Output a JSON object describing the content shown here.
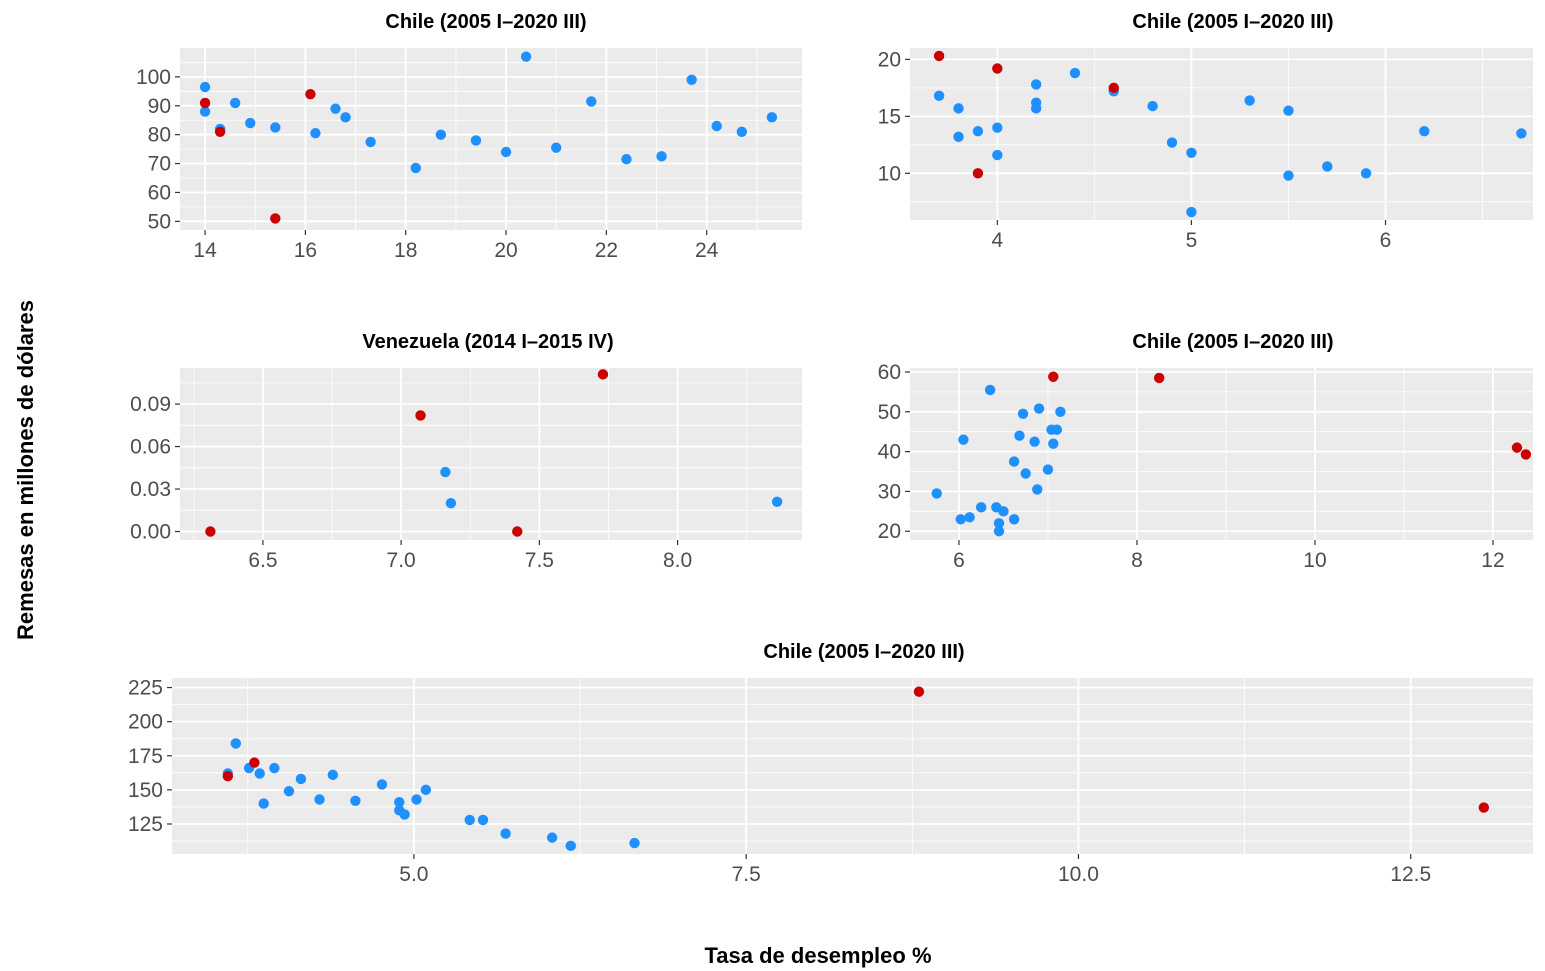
{
  "figure": {
    "xlabel": "Tasa de desempleo %",
    "ylabel": "Remesas en millones de dólares",
    "colors": {
      "normal": "#1e90ff",
      "highlight": "#cc0000",
      "panel_bg": "#ebebeb",
      "grid": "#ffffff",
      "tick_text": "#4d4d4d"
    }
  },
  "chart_data": [
    {
      "type": "scatter",
      "title": "Chile (2005 I–2020 III)",
      "xlim": [
        13.5,
        25.9
      ],
      "ylim": [
        47,
        110
      ],
      "x_ticks": [
        14,
        16,
        18,
        20,
        22,
        24
      ],
      "x_tick_labels": [
        "14",
        "16",
        "18",
        "20",
        "22",
        "24"
      ],
      "y_ticks": [
        50,
        60,
        70,
        80,
        90,
        100
      ],
      "y_tick_labels": [
        "50",
        "60",
        "70",
        "80",
        "90",
        "100"
      ],
      "points": [
        {
          "x": 14.0,
          "y": 96.5,
          "highlight": false
        },
        {
          "x": 14.0,
          "y": 88.0,
          "highlight": false
        },
        {
          "x": 14.0,
          "y": 91.0,
          "highlight": true
        },
        {
          "x": 14.3,
          "y": 82.0,
          "highlight": false
        },
        {
          "x": 14.3,
          "y": 81.0,
          "highlight": true
        },
        {
          "x": 14.6,
          "y": 91.0,
          "highlight": false
        },
        {
          "x": 14.9,
          "y": 84.0,
          "highlight": false
        },
        {
          "x": 15.4,
          "y": 82.5,
          "highlight": false
        },
        {
          "x": 15.4,
          "y": 51.0,
          "highlight": true
        },
        {
          "x": 16.1,
          "y": 94.0,
          "highlight": true
        },
        {
          "x": 16.2,
          "y": 80.5,
          "highlight": false
        },
        {
          "x": 16.6,
          "y": 89.0,
          "highlight": false
        },
        {
          "x": 16.8,
          "y": 86.0,
          "highlight": false
        },
        {
          "x": 17.3,
          "y": 77.5,
          "highlight": false
        },
        {
          "x": 18.2,
          "y": 68.5,
          "highlight": false
        },
        {
          "x": 18.7,
          "y": 80.0,
          "highlight": false
        },
        {
          "x": 19.4,
          "y": 78.0,
          "highlight": false
        },
        {
          "x": 20.0,
          "y": 74.0,
          "highlight": false
        },
        {
          "x": 20.4,
          "y": 107.0,
          "highlight": false
        },
        {
          "x": 21.0,
          "y": 75.5,
          "highlight": false
        },
        {
          "x": 21.7,
          "y": 91.5,
          "highlight": false
        },
        {
          "x": 22.4,
          "y": 71.5,
          "highlight": false
        },
        {
          "x": 23.1,
          "y": 72.5,
          "highlight": false
        },
        {
          "x": 23.7,
          "y": 99.0,
          "highlight": false
        },
        {
          "x": 24.2,
          "y": 83.0,
          "highlight": false
        },
        {
          "x": 24.7,
          "y": 81.0,
          "highlight": false
        },
        {
          "x": 25.3,
          "y": 86.0,
          "highlight": false
        }
      ]
    },
    {
      "type": "scatter",
      "title": "Chile (2005 I–2020 III)",
      "xlim": [
        3.55,
        6.76
      ],
      "ylim": [
        5.9,
        21.0
      ],
      "x_ticks": [
        4,
        5,
        6
      ],
      "x_tick_labels": [
        "4",
        "5",
        "6"
      ],
      "y_ticks": [
        10,
        15,
        20
      ],
      "y_tick_labels": [
        "10",
        "15",
        "20"
      ],
      "points": [
        {
          "x": 3.7,
          "y": 20.3,
          "highlight": true
        },
        {
          "x": 3.7,
          "y": 16.8,
          "highlight": false
        },
        {
          "x": 3.8,
          "y": 15.7,
          "highlight": false
        },
        {
          "x": 3.8,
          "y": 13.2,
          "highlight": false
        },
        {
          "x": 3.9,
          "y": 13.7,
          "highlight": false
        },
        {
          "x": 3.9,
          "y": 10.0,
          "highlight": true
        },
        {
          "x": 4.0,
          "y": 19.2,
          "highlight": true
        },
        {
          "x": 4.0,
          "y": 14.0,
          "highlight": false
        },
        {
          "x": 4.0,
          "y": 11.6,
          "highlight": false
        },
        {
          "x": 4.2,
          "y": 17.8,
          "highlight": false
        },
        {
          "x": 4.2,
          "y": 16.2,
          "highlight": false
        },
        {
          "x": 4.2,
          "y": 15.7,
          "highlight": false
        },
        {
          "x": 4.4,
          "y": 18.8,
          "highlight": false
        },
        {
          "x": 4.6,
          "y": 17.2,
          "highlight": false
        },
        {
          "x": 4.6,
          "y": 17.5,
          "highlight": true
        },
        {
          "x": 4.8,
          "y": 15.9,
          "highlight": false
        },
        {
          "x": 4.9,
          "y": 12.7,
          "highlight": false
        },
        {
          "x": 5.0,
          "y": 11.8,
          "highlight": false
        },
        {
          "x": 5.0,
          "y": 6.6,
          "highlight": false
        },
        {
          "x": 5.3,
          "y": 16.4,
          "highlight": false
        },
        {
          "x": 5.5,
          "y": 15.5,
          "highlight": false
        },
        {
          "x": 5.5,
          "y": 9.8,
          "highlight": false
        },
        {
          "x": 5.7,
          "y": 10.6,
          "highlight": false
        },
        {
          "x": 5.9,
          "y": 10.0,
          "highlight": false
        },
        {
          "x": 6.2,
          "y": 13.7,
          "highlight": false
        },
        {
          "x": 6.7,
          "y": 13.5,
          "highlight": false
        }
      ]
    },
    {
      "type": "scatter",
      "title": "Venezuela (2014 I–2015 IV)",
      "xlim": [
        6.2,
        8.45
      ],
      "ylim": [
        -0.006,
        0.1155
      ],
      "x_ticks": [
        6.5,
        7.0,
        7.5,
        8.0
      ],
      "x_tick_labels": [
        "6.5",
        "7.0",
        "7.5",
        "8.0"
      ],
      "y_ticks": [
        0.0,
        0.03,
        0.06,
        0.09
      ],
      "y_tick_labels": [
        "0.00",
        "0.03",
        "0.06",
        "0.09"
      ],
      "points": [
        {
          "x": 6.31,
          "y": 0.0,
          "highlight": true
        },
        {
          "x": 7.07,
          "y": 0.082,
          "highlight": true
        },
        {
          "x": 7.16,
          "y": 0.042,
          "highlight": false
        },
        {
          "x": 7.18,
          "y": 0.02,
          "highlight": false
        },
        {
          "x": 7.42,
          "y": 0.0,
          "highlight": true
        },
        {
          "x": 7.73,
          "y": 0.111,
          "highlight": true
        },
        {
          "x": 8.36,
          "y": 0.021,
          "highlight": false
        }
      ]
    },
    {
      "type": "scatter",
      "title": "Chile (2005 I–2020 III)",
      "xlim": [
        5.45,
        12.45
      ],
      "ylim": [
        17.8,
        61.0
      ],
      "x_ticks": [
        6,
        8,
        10,
        12
      ],
      "x_tick_labels": [
        "6",
        "8",
        "10",
        "12"
      ],
      "y_ticks": [
        20,
        30,
        40,
        50,
        60
      ],
      "y_tick_labels": [
        "20",
        "30",
        "40",
        "50",
        "60"
      ],
      "points": [
        {
          "x": 5.75,
          "y": 29.5,
          "highlight": false
        },
        {
          "x": 6.02,
          "y": 23.0,
          "highlight": false
        },
        {
          "x": 6.05,
          "y": 43.0,
          "highlight": false
        },
        {
          "x": 6.12,
          "y": 23.5,
          "highlight": false
        },
        {
          "x": 6.25,
          "y": 26.0,
          "highlight": false
        },
        {
          "x": 6.35,
          "y": 55.5,
          "highlight": false
        },
        {
          "x": 6.42,
          "y": 26.0,
          "highlight": false
        },
        {
          "x": 6.45,
          "y": 22.0,
          "highlight": false
        },
        {
          "x": 6.45,
          "y": 20.0,
          "highlight": false
        },
        {
          "x": 6.5,
          "y": 25.0,
          "highlight": false
        },
        {
          "x": 6.62,
          "y": 37.5,
          "highlight": false
        },
        {
          "x": 6.62,
          "y": 23.0,
          "highlight": false
        },
        {
          "x": 6.68,
          "y": 44.0,
          "highlight": false
        },
        {
          "x": 6.72,
          "y": 49.5,
          "highlight": false
        },
        {
          "x": 6.75,
          "y": 34.5,
          "highlight": false
        },
        {
          "x": 6.85,
          "y": 42.5,
          "highlight": false
        },
        {
          "x": 6.88,
          "y": 30.5,
          "highlight": false
        },
        {
          "x": 6.9,
          "y": 50.8,
          "highlight": false
        },
        {
          "x": 7.0,
          "y": 35.5,
          "highlight": false
        },
        {
          "x": 7.04,
          "y": 45.5,
          "highlight": false
        },
        {
          "x": 7.06,
          "y": 42.0,
          "highlight": false
        },
        {
          "x": 7.06,
          "y": 58.8,
          "highlight": true
        },
        {
          "x": 7.1,
          "y": 45.5,
          "highlight": false
        },
        {
          "x": 7.14,
          "y": 50.0,
          "highlight": false
        },
        {
          "x": 8.25,
          "y": 58.5,
          "highlight": true
        },
        {
          "x": 12.27,
          "y": 41.0,
          "highlight": true
        },
        {
          "x": 12.37,
          "y": 39.3,
          "highlight": true
        }
      ]
    },
    {
      "type": "scatter",
      "title": "Chile (2005 I–2020 III)",
      "xlim": [
        3.18,
        13.42
      ],
      "ylim": [
        103,
        232
      ],
      "x_ticks": [
        5.0,
        7.5,
        10.0,
        12.5
      ],
      "x_tick_labels": [
        "5.0",
        "7.5",
        "10.0",
        "12.5"
      ],
      "y_ticks": [
        125,
        150,
        175,
        200,
        225
      ],
      "y_tick_labels": [
        "125",
        "150",
        "175",
        "200",
        "225"
      ],
      "points": [
        {
          "x": 3.6,
          "y": 162,
          "highlight": false
        },
        {
          "x": 3.6,
          "y": 160,
          "highlight": true
        },
        {
          "x": 3.66,
          "y": 184,
          "highlight": false
        },
        {
          "x": 3.76,
          "y": 166,
          "highlight": false
        },
        {
          "x": 3.8,
          "y": 170,
          "highlight": true
        },
        {
          "x": 3.84,
          "y": 162,
          "highlight": false
        },
        {
          "x": 3.87,
          "y": 140,
          "highlight": false
        },
        {
          "x": 3.95,
          "y": 166,
          "highlight": false
        },
        {
          "x": 4.06,
          "y": 149,
          "highlight": false
        },
        {
          "x": 4.15,
          "y": 158,
          "highlight": false
        },
        {
          "x": 4.29,
          "y": 143,
          "highlight": false
        },
        {
          "x": 4.39,
          "y": 161,
          "highlight": false
        },
        {
          "x": 4.56,
          "y": 142,
          "highlight": false
        },
        {
          "x": 4.76,
          "y": 154,
          "highlight": false
        },
        {
          "x": 4.89,
          "y": 141,
          "highlight": false
        },
        {
          "x": 4.89,
          "y": 135,
          "highlight": false
        },
        {
          "x": 4.93,
          "y": 132,
          "highlight": false
        },
        {
          "x": 5.02,
          "y": 143,
          "highlight": false
        },
        {
          "x": 5.09,
          "y": 150,
          "highlight": false
        },
        {
          "x": 5.42,
          "y": 128,
          "highlight": false
        },
        {
          "x": 5.52,
          "y": 128,
          "highlight": false
        },
        {
          "x": 5.69,
          "y": 118,
          "highlight": false
        },
        {
          "x": 6.04,
          "y": 115,
          "highlight": false
        },
        {
          "x": 6.18,
          "y": 109,
          "highlight": false
        },
        {
          "x": 6.66,
          "y": 111,
          "highlight": false
        },
        {
          "x": 8.8,
          "y": 222,
          "highlight": true
        },
        {
          "x": 13.05,
          "y": 137,
          "highlight": true
        }
      ]
    }
  ]
}
